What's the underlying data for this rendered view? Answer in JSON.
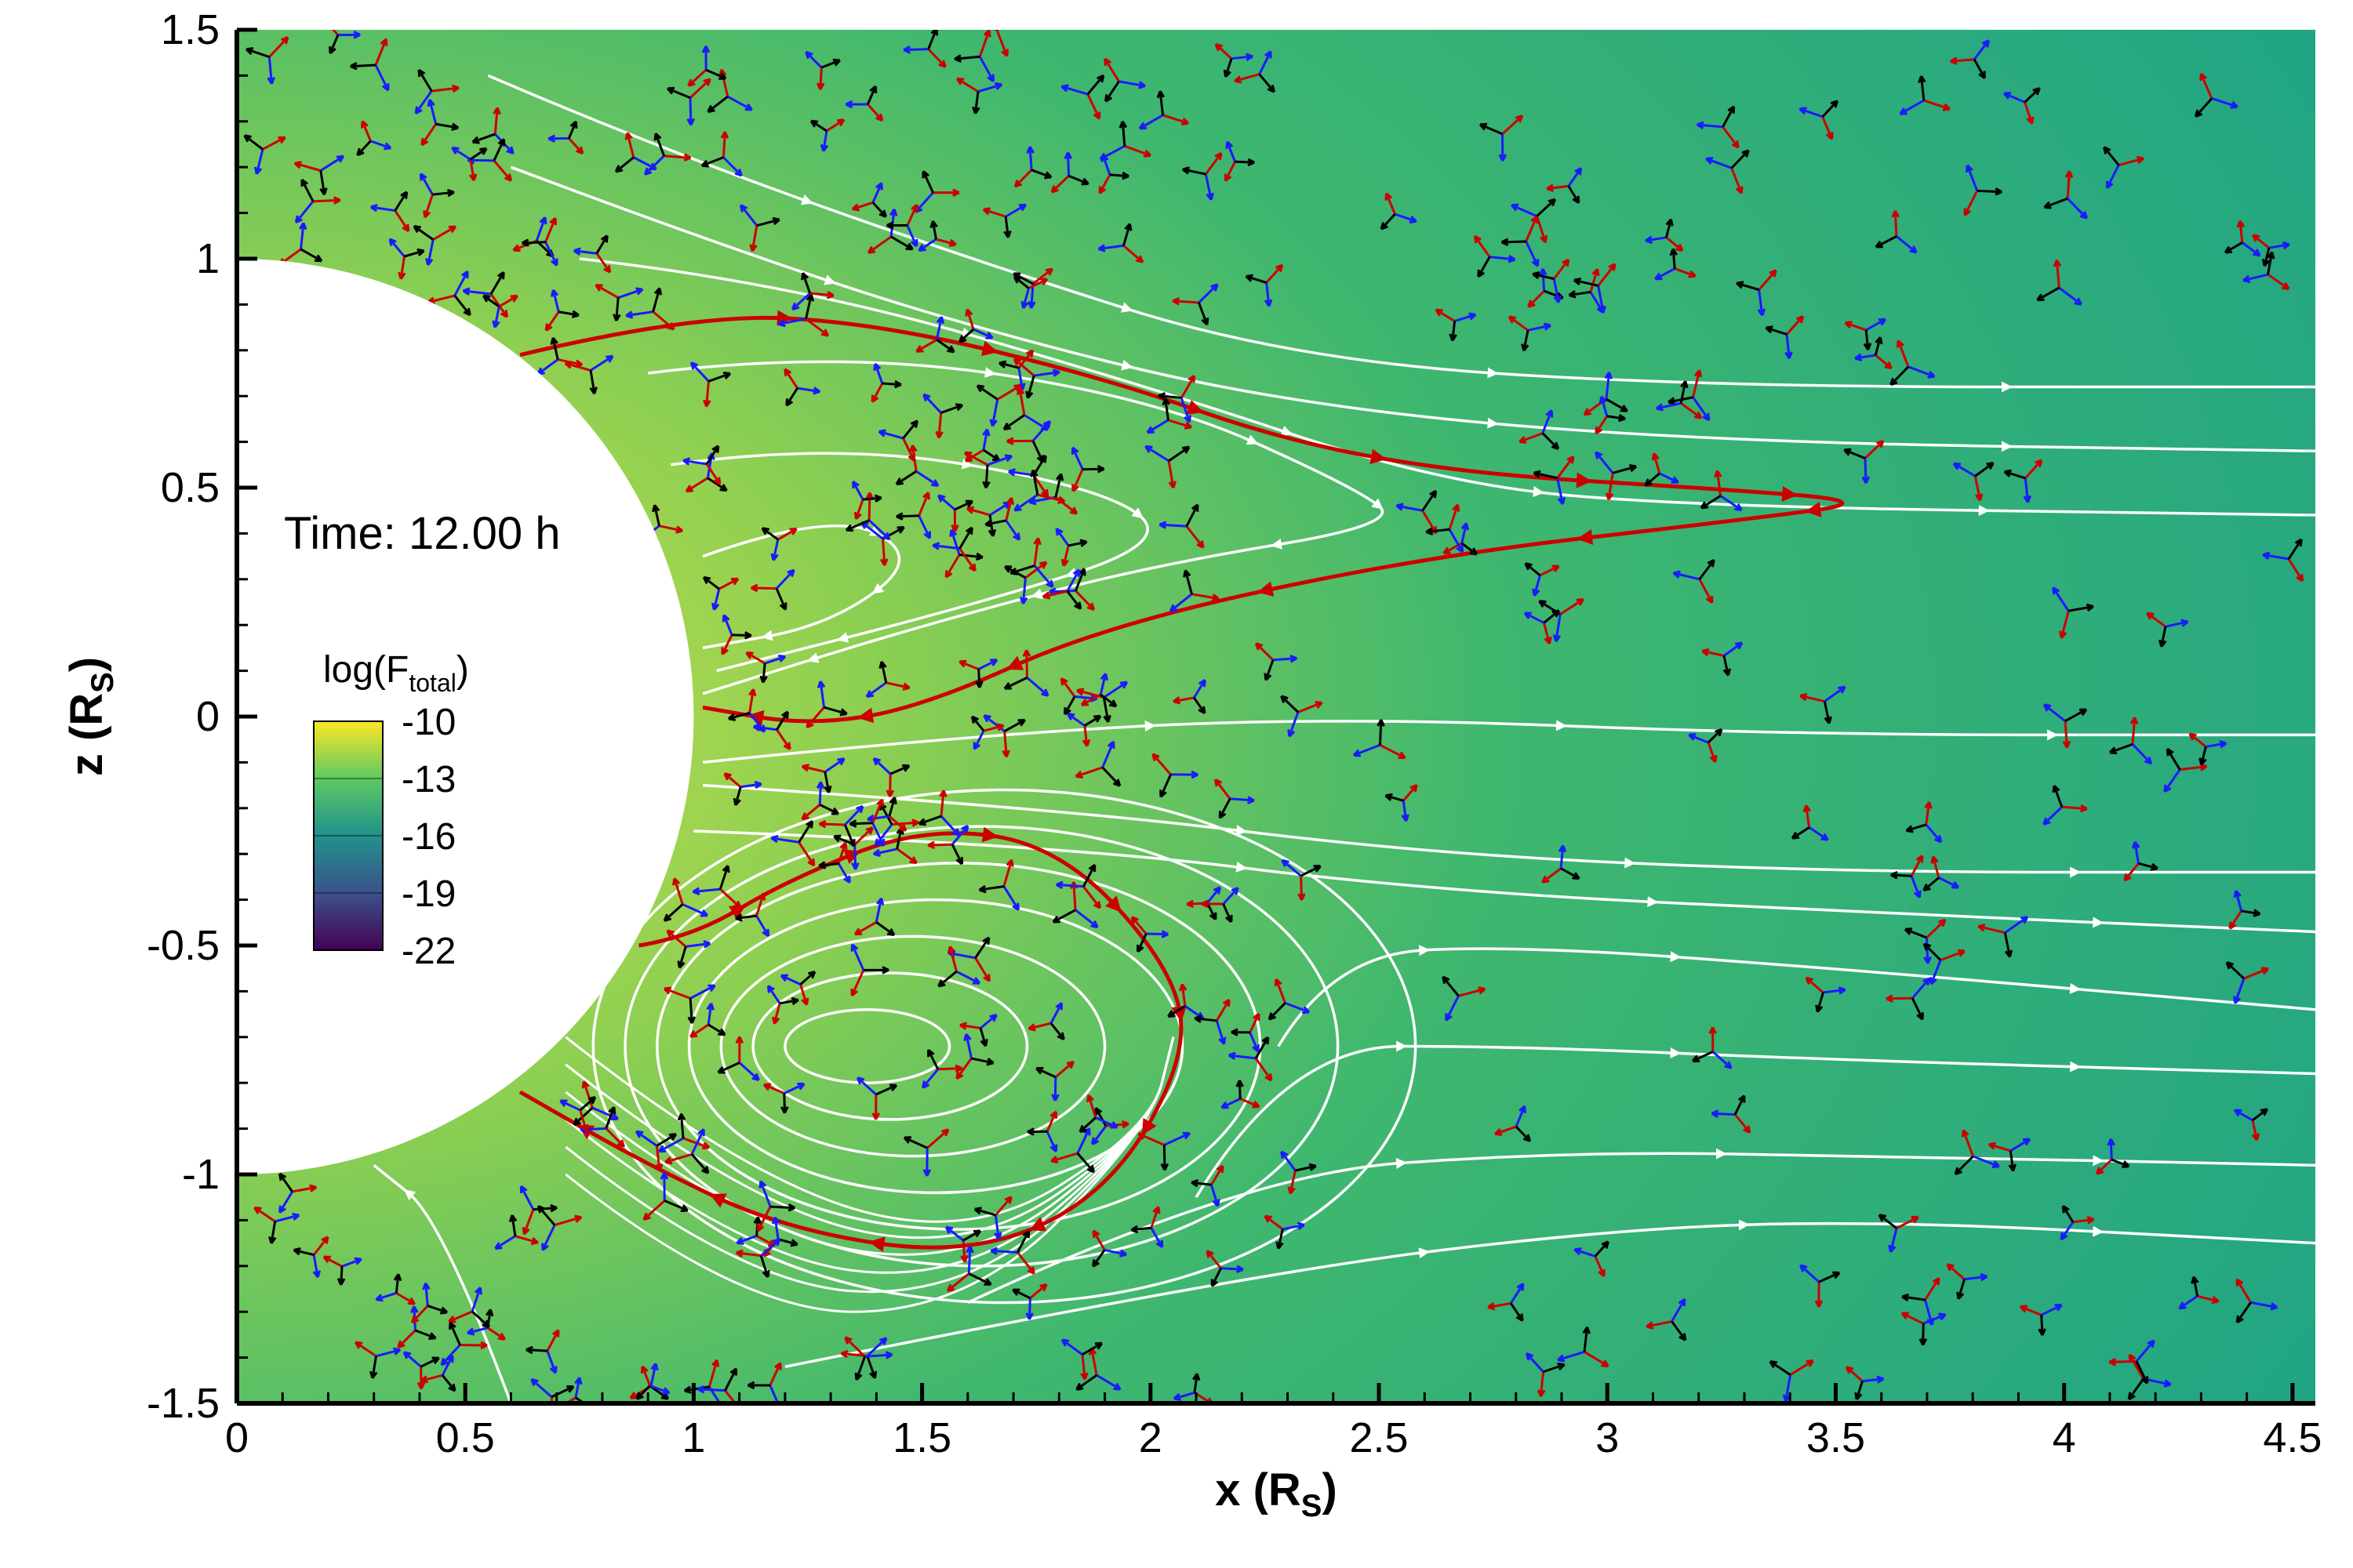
{
  "chart_data": {
    "type": "vector-field",
    "xlabel": "x (R",
    "xlabel_sub": "S",
    "xlabel_close": ")",
    "ylabel": "z (R",
    "ylabel_sub": "S",
    "ylabel_close": ")",
    "xlim": [
      0,
      4.55
    ],
    "ylim": [
      -1.5,
      1.5
    ],
    "xticks": [
      0,
      0.5,
      1,
      1.5,
      2,
      2.5,
      3,
      3.5,
      4,
      4.5
    ],
    "xtick_labels": [
      "0",
      "0.5",
      "1",
      "1.5",
      "2",
      "2.5",
      "3",
      "3.5",
      "4",
      "4.5"
    ],
    "yticks": [
      1.5,
      1,
      0.5,
      0,
      -0.5,
      -1,
      -1.5
    ],
    "ytick_labels": [
      "1.5",
      "1",
      "0.5",
      "0",
      "-0.5",
      "-1",
      "-1.5"
    ],
    "annotation": "Time: 12.00 h",
    "colorbar": {
      "title": "log(F",
      "title_sub": "total",
      "title_close": ")",
      "ticks": [
        "-10",
        "-13",
        "-16",
        "-19",
        "-22"
      ],
      "colors": [
        "#fde725",
        "#5ec962",
        "#21918c",
        "#3b528b",
        "#440154"
      ]
    },
    "background_color": "#2fae7f",
    "sun_radius": 1.0,
    "red_field_line_color": "#cc0000",
    "white_field_line_color": "#ffffff",
    "arrow_colors": [
      "#cc0000",
      "#1a1aff",
      "#000000"
    ]
  }
}
